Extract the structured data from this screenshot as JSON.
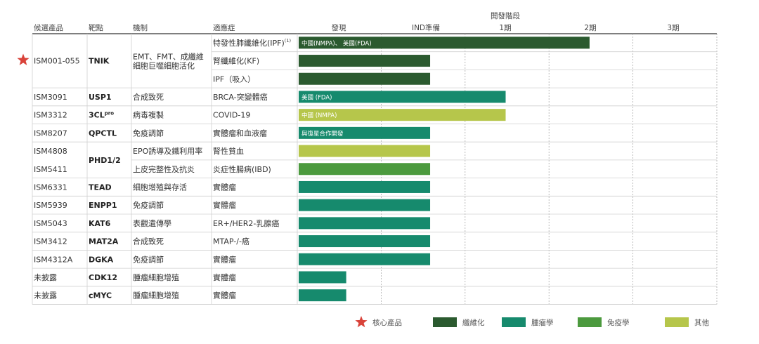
{
  "chart_data": {
    "type": "bar",
    "title": "",
    "super_header": "開發階段",
    "columns": {
      "candidate": "候選產品",
      "target": "靶點",
      "mechanism": "機制",
      "indication": "適應症"
    },
    "stages": [
      "發現",
      "IND準備",
      "1期",
      "2期",
      "3期"
    ],
    "rows": [
      {
        "candidate": "ISM001-055",
        "core": true,
        "target": "TNIK",
        "mechanism": [
          "EMT、FMT、成纖維",
          "細胞巨噬細胞活化"
        ],
        "indication": "特發性肺纖維化(IPF)",
        "indication_sup": "(1)",
        "progress": 3.5,
        "category": "fibrosis",
        "label": "中國(NMPA)、 美國(FDA)"
      },
      {
        "candidate": "",
        "core": false,
        "target": "",
        "mechanism": [],
        "indication": "腎纖維化(KF)",
        "indication_sup": "",
        "progress": 1.6,
        "category": "fibrosis",
        "label": ""
      },
      {
        "candidate": "",
        "core": false,
        "target": "",
        "mechanism": [],
        "indication": "IPF（吸入）",
        "indication_sup": "",
        "progress": 1.6,
        "category": "fibrosis",
        "label": ""
      },
      {
        "candidate": "ISM3091",
        "core": false,
        "target": "USP1",
        "mechanism": [
          "合成致死"
        ],
        "indication": "BRCA-突變體癌",
        "indication_sup": "",
        "progress": 2.5,
        "category": "oncology",
        "label": "美國 (FDA)"
      },
      {
        "candidate": "ISM3312",
        "core": false,
        "target": "3CL",
        "target_sup": "pro",
        "mechanism": [
          "病毒複製"
        ],
        "indication": "COVID-19",
        "indication_sup": "",
        "progress": 2.5,
        "category": "other",
        "label": "中國 (NMPA)"
      },
      {
        "candidate": "ISM8207",
        "core": false,
        "target": "QPCTL",
        "mechanism": [
          "免疫調節"
        ],
        "indication": "實體瘤和血液瘤",
        "indication_sup": "",
        "progress": 1.6,
        "category": "oncology",
        "label": "與復星合作開發"
      },
      {
        "candidate": "ISM4808",
        "core": false,
        "target": "",
        "mechanism": [
          "EPO誘導及鐵利用率"
        ],
        "indication": "腎性貧血",
        "indication_sup": "",
        "progress": 1.6,
        "category": "other",
        "label": ""
      },
      {
        "candidate": "ISM5411",
        "core": false,
        "target": "",
        "mechanism": [
          "上皮完整性及抗炎"
        ],
        "indication": "炎症性腸病(IBD)",
        "indication_sup": "",
        "progress": 1.6,
        "category": "immunology",
        "label": ""
      },
      {
        "candidate": "ISM6331",
        "core": false,
        "target": "TEAD",
        "mechanism": [
          "細胞增殖與存活"
        ],
        "indication": "實體瘤",
        "indication_sup": "",
        "progress": 1.6,
        "category": "oncology",
        "label": ""
      },
      {
        "candidate": "ISM5939",
        "core": false,
        "target": "ENPP1",
        "mechanism": [
          "免疫調節"
        ],
        "indication": "實體瘤",
        "indication_sup": "",
        "progress": 1.6,
        "category": "oncology",
        "label": ""
      },
      {
        "candidate": "ISM5043",
        "core": false,
        "target": "KAT6",
        "mechanism": [
          "表觀遺傳學"
        ],
        "indication": "ER+/HER2-乳腺癌",
        "indication_sup": "",
        "progress": 1.6,
        "category": "oncology",
        "label": ""
      },
      {
        "candidate": "ISM3412",
        "core": false,
        "target": "MAT2A",
        "mechanism": [
          "合成致死"
        ],
        "indication": "MTAP-/-癌",
        "indication_sup": "",
        "progress": 1.6,
        "category": "oncology",
        "label": ""
      },
      {
        "candidate": "ISM4312A",
        "core": false,
        "target": "DGKA",
        "mechanism": [
          "免疫調節"
        ],
        "indication": "實體瘤",
        "indication_sup": "",
        "progress": 1.6,
        "category": "oncology",
        "label": ""
      },
      {
        "candidate": "未披露",
        "core": false,
        "target": "CDK12",
        "mechanism": [
          "腫瘤細胞增殖"
        ],
        "indication": "實體瘤",
        "indication_sup": "",
        "progress": 0.6,
        "category": "oncology",
        "label": ""
      },
      {
        "candidate": "未披露",
        "core": false,
        "target": "cMYC",
        "mechanism": [
          "腫瘤細胞增殖"
        ],
        "indication": "實體瘤",
        "indication_sup": "",
        "progress": 0.6,
        "category": "oncology",
        "label": ""
      }
    ],
    "merged_target": "PHD1/2",
    "legend": [
      {
        "key": "core",
        "label": "核心產品",
        "color": "#d9433a"
      },
      {
        "key": "fibrosis",
        "label": "纖維化",
        "color": "#2b5a2f"
      },
      {
        "key": "oncology",
        "label": "腫瘤學",
        "color": "#168a6d"
      },
      {
        "key": "immunology",
        "label": "免疫學",
        "color": "#4c9a3e"
      },
      {
        "key": "other",
        "label": "其他",
        "color": "#b6c64b"
      }
    ],
    "grid": true,
    "legend_position": "bottom-right"
  }
}
